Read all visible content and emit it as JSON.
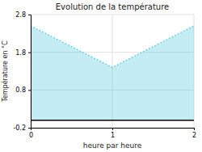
{
  "chart_data": {
    "type": "area",
    "title": "Evolution de la température",
    "xlabel": "heure par heure",
    "ylabel": "Température en °C",
    "x": [
      0,
      1,
      2
    ],
    "values": [
      2.5,
      1.4,
      2.5
    ],
    "baseline": 0.0,
    "color": "#55CCDD",
    "line_style": "dotted",
    "xlim": [
      0,
      2
    ],
    "ylim": [
      -0.2,
      2.8
    ],
    "xticks": [
      0,
      1,
      2
    ],
    "yticks": [
      -0.2,
      0.8,
      1.8,
      2.8
    ],
    "grid": true
  }
}
